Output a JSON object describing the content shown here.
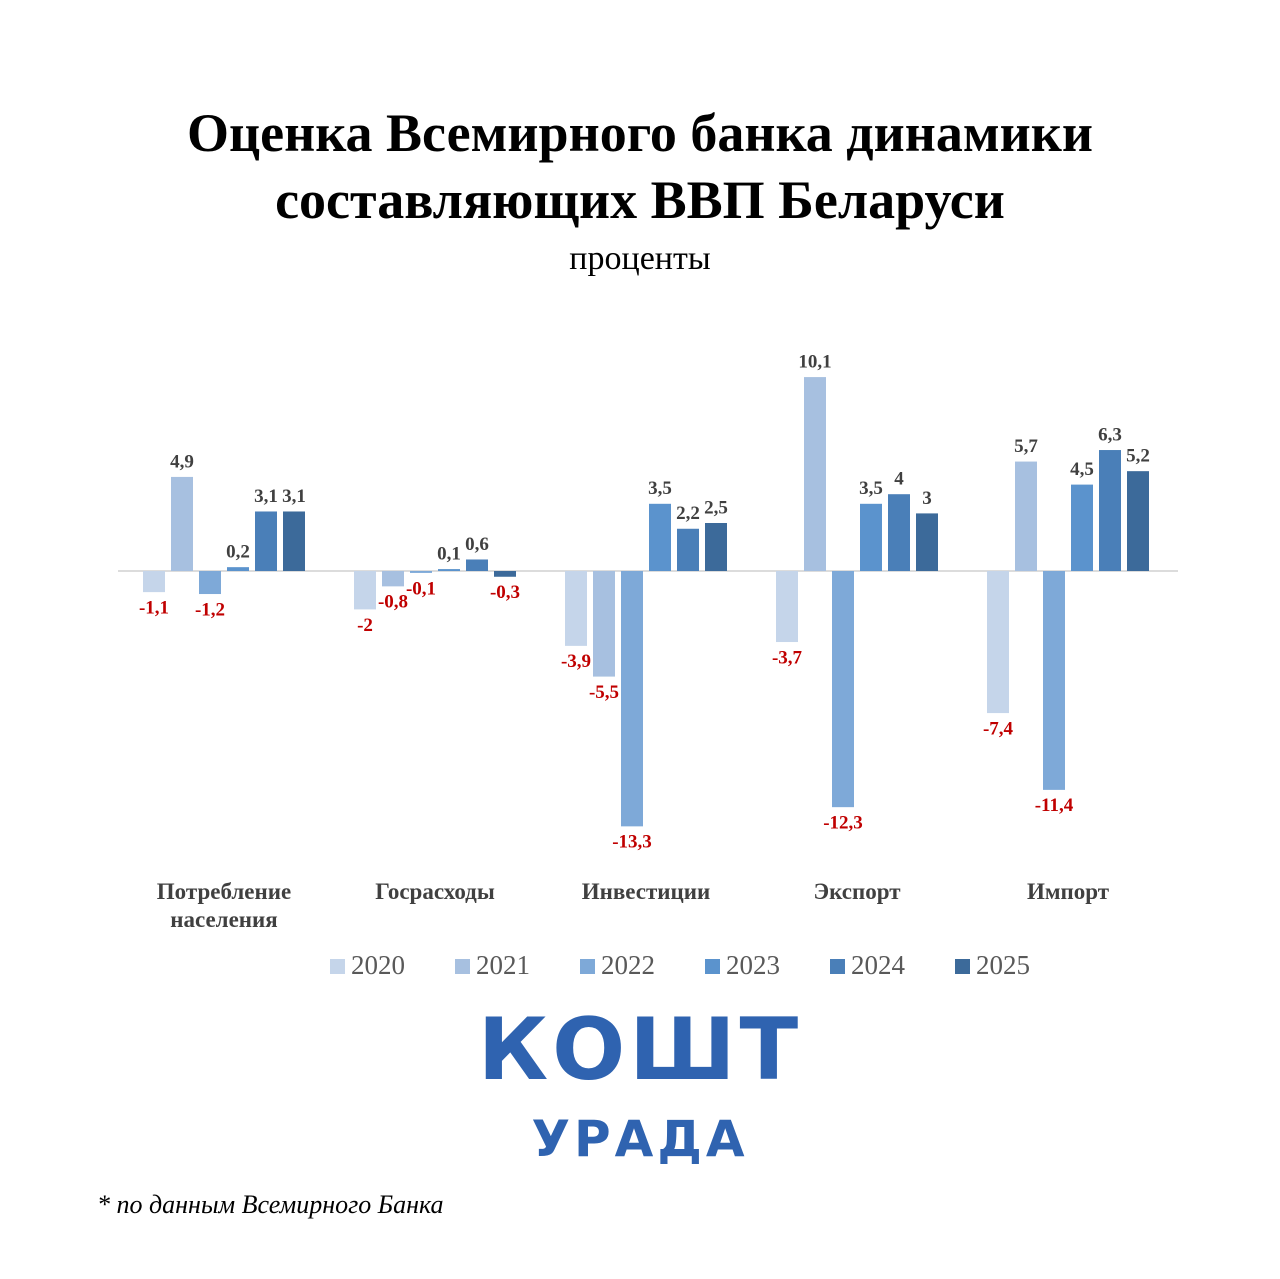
{
  "chart_data": {
    "type": "bar",
    "title": "Оценка Всемирного банка динамики составляющих ВВП Беларуси",
    "subtitle": "проценты",
    "categories": [
      "Потребление населения",
      "Госрасходы",
      "Инвестиции",
      "Экспорт",
      "Импорт"
    ],
    "series": [
      {
        "name": "2020",
        "color": "#c5d5ea",
        "values": [
          -1.1,
          -2,
          -3.9,
          -3.7,
          -7.4
        ],
        "value_labels": [
          "-1,1",
          "-2",
          "-3,9",
          "-3,7",
          "-7,4"
        ]
      },
      {
        "name": "2021",
        "color": "#a7c0e0",
        "values": [
          4.9,
          -0.8,
          -5.5,
          10.1,
          5.7
        ],
        "value_labels": [
          "4,9",
          "-0,8",
          "-5,5",
          "10,1",
          "5,7"
        ]
      },
      {
        "name": "2022",
        "color": "#7ea9d8",
        "values": [
          -1.2,
          -0.1,
          -13.3,
          -12.3,
          -11.4
        ],
        "value_labels": [
          "-1,2",
          "-0,1",
          "-13,3",
          "-12,3",
          "-11,4"
        ]
      },
      {
        "name": "2023",
        "color": "#5b93cd",
        "values": [
          0.2,
          0.1,
          3.5,
          3.5,
          4.5
        ],
        "value_labels": [
          "0,2",
          "0,1",
          "3,5",
          "3,5",
          "4,5"
        ]
      },
      {
        "name": "2024",
        "color": "#4a7fb8",
        "values": [
          3.1,
          0.6,
          2.2,
          4,
          6.3
        ],
        "value_labels": [
          "3,1",
          "0,6",
          "2,2",
          "4",
          "6,3"
        ]
      },
      {
        "name": "2025",
        "color": "#3c6a9a",
        "values": [
          3.1,
          -0.3,
          2.5,
          3,
          5.2
        ],
        "value_labels": [
          "3,1",
          "-0,3",
          "2,5",
          "3",
          "5,2"
        ]
      }
    ],
    "legend": "bottom",
    "positive_label_color": "#404040",
    "negative_label_color": "#c00000"
  },
  "logo": {
    "top": "КОШТ",
    "bottom": "УРАДА"
  },
  "footnote": "* по данным Всемирного Банка"
}
